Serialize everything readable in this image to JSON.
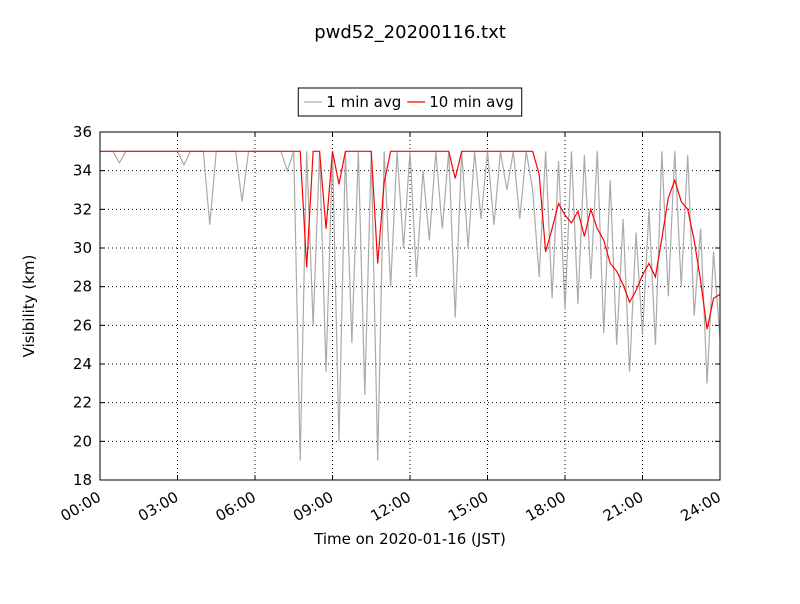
{
  "chart_data": {
    "type": "line",
    "title": "pwd52_20200116.txt",
    "x_label": "Time on 2020-01-16 (JST)",
    "y_label": "Visibility (km)",
    "x": [
      "00:00",
      "00:15",
      "00:30",
      "00:45",
      "01:00",
      "01:15",
      "01:30",
      "01:45",
      "02:00",
      "02:15",
      "02:30",
      "02:45",
      "03:00",
      "03:15",
      "03:30",
      "03:45",
      "04:00",
      "04:15",
      "04:30",
      "04:45",
      "05:00",
      "05:15",
      "05:30",
      "05:45",
      "06:00",
      "06:15",
      "06:30",
      "06:45",
      "07:00",
      "07:15",
      "07:30",
      "07:45",
      "08:00",
      "08:15",
      "08:30",
      "08:45",
      "09:00",
      "09:15",
      "09:30",
      "09:45",
      "10:00",
      "10:15",
      "10:30",
      "10:45",
      "11:00",
      "11:15",
      "11:30",
      "11:45",
      "12:00",
      "12:15",
      "12:30",
      "12:45",
      "13:00",
      "13:15",
      "13:30",
      "13:45",
      "14:00",
      "14:15",
      "14:30",
      "14:45",
      "15:00",
      "15:15",
      "15:30",
      "15:45",
      "16:00",
      "16:15",
      "16:30",
      "16:45",
      "17:00",
      "17:15",
      "17:30",
      "17:45",
      "18:00",
      "18:15",
      "18:30",
      "18:45",
      "19:00",
      "19:15",
      "19:30",
      "19:45",
      "20:00",
      "20:15",
      "20:30",
      "20:45",
      "21:00",
      "21:15",
      "21:30",
      "21:45",
      "22:00",
      "22:15",
      "22:30",
      "22:45",
      "23:00",
      "23:15",
      "23:30",
      "23:45",
      "24:00"
    ],
    "series": [
      {
        "name": "1 min avg",
        "color": "#aaaaaa",
        "values": [
          35,
          35,
          35,
          34.4,
          35,
          35,
          35,
          35,
          35,
          35,
          35,
          35,
          35,
          34.3,
          35,
          35,
          35,
          31.2,
          35,
          35,
          35,
          35,
          32.4,
          35,
          35,
          35,
          35,
          35,
          35,
          34.0,
          35,
          19.0,
          35,
          26.0,
          35,
          23.6,
          35,
          20.0,
          35,
          25.1,
          35,
          22.4,
          35,
          19.0,
          35,
          28.0,
          35,
          30.0,
          35,
          28.5,
          34,
          30.4,
          35,
          31.0,
          35,
          26.4,
          35,
          30.0,
          35,
          31.5,
          35,
          31.2,
          35,
          33.0,
          35,
          31.5,
          35,
          33.0,
          28.5,
          35,
          27.4,
          34.5,
          26.8,
          35,
          27.1,
          34.8,
          28.4,
          35,
          25.6,
          33.5,
          25.0,
          31.5,
          23.6,
          30.8,
          25.5,
          32.0,
          25.0,
          35,
          27.5,
          35,
          28.0,
          34.8,
          26.5,
          31.0,
          23.0,
          29.8,
          25.3
        ]
      },
      {
        "name": "10 min avg",
        "color": "#ff0000",
        "values": [
          35,
          35,
          35,
          35,
          35,
          35,
          35,
          35,
          35,
          35,
          35,
          35,
          35,
          35,
          35,
          35,
          35,
          35,
          35,
          35,
          35,
          35,
          35,
          35,
          35,
          35,
          35,
          35,
          35,
          35,
          35,
          35,
          29.0,
          35,
          35,
          31.0,
          35,
          33.3,
          35,
          35,
          35,
          35,
          35,
          29.2,
          33.4,
          35,
          35,
          35,
          35,
          35,
          35,
          35,
          35,
          35,
          35,
          33.6,
          35,
          35,
          35,
          35,
          35,
          35,
          35,
          35,
          35,
          35,
          35,
          35,
          33.8,
          29.8,
          31.0,
          32.3,
          31.7,
          31.3,
          31.9,
          30.6,
          32.0,
          31.0,
          30.4,
          29.2,
          28.8,
          28.1,
          27.2,
          27.8,
          28.6,
          29.2,
          28.5,
          30.5,
          32.6,
          33.5,
          32.4,
          32.0,
          30.4,
          28.3,
          25.8,
          27.4,
          27.6
        ]
      }
    ],
    "xlim": [
      "00:00",
      "24:00"
    ],
    "xticks": [
      "00:00",
      "03:00",
      "06:00",
      "09:00",
      "12:00",
      "15:00",
      "18:00",
      "21:00",
      "24:00"
    ],
    "ylim": [
      18,
      36
    ],
    "yticks": [
      18,
      20,
      22,
      24,
      26,
      28,
      30,
      32,
      34,
      36
    ],
    "grid": true,
    "legend": "top"
  }
}
